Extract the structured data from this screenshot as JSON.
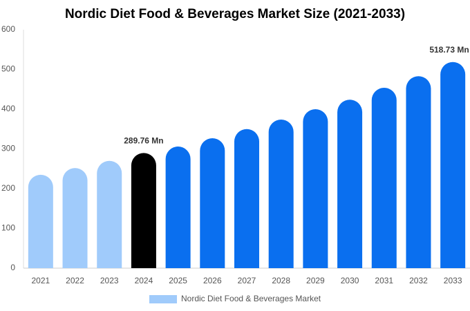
{
  "chart_data": {
    "type": "bar",
    "title": "Nordic Diet Food & Beverages Market Size (2021-2033)",
    "categories": [
      "2021",
      "2022",
      "2023",
      "2024",
      "2025",
      "2026",
      "2027",
      "2028",
      "2029",
      "2030",
      "2031",
      "2032",
      "2033"
    ],
    "series": [
      {
        "name": "Nordic Diet Food & Beverages Market",
        "color": "#a0cbfb",
        "colors": [
          "#a0cbfb",
          "#a0cbfb",
          "#a0cbfb",
          "#000000",
          "#0a6fef",
          "#0a6fef",
          "#0a6fef",
          "#0a6fef",
          "#0a6fef",
          "#0a6fef",
          "#0a6fef",
          "#0a6fef",
          "#0a6fef"
        ],
        "values": [
          235,
          252,
          270,
          289.76,
          306,
          327,
          350,
          374,
          400,
          424,
          454,
          483,
          518.73
        ],
        "value_labels": [
          null,
          null,
          null,
          "289.76 Mn",
          null,
          null,
          null,
          null,
          null,
          null,
          null,
          null,
          "518.73 Mn"
        ]
      }
    ],
    "ylim": [
      0,
      600
    ],
    "yticks": [
      0,
      100,
      200,
      300,
      400,
      500,
      600
    ],
    "grid": false
  }
}
